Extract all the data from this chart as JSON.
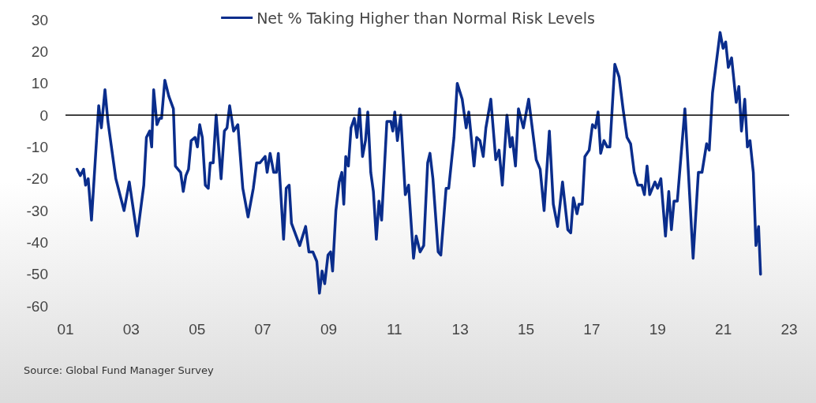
{
  "chart_data": {
    "type": "line",
    "legend": "top",
    "line_style": "solid",
    "grid": false,
    "xlim": [
      2001,
      2023
    ],
    "xticks": [
      {
        "value": 2001,
        "label": "01"
      },
      {
        "value": 2003,
        "label": "03"
      },
      {
        "value": 2005,
        "label": "05"
      },
      {
        "value": 2007,
        "label": "07"
      },
      {
        "value": 2009,
        "label": "09"
      },
      {
        "value": 2011,
        "label": "11"
      },
      {
        "value": 2013,
        "label": "13"
      },
      {
        "value": 2015,
        "label": "15"
      },
      {
        "value": 2017,
        "label": "17"
      },
      {
        "value": 2019,
        "label": "19"
      },
      {
        "value": 2021,
        "label": "21"
      },
      {
        "value": 2023,
        "label": "23"
      }
    ],
    "ylim": [
      -60,
      30
    ],
    "yticks": [
      -60,
      -50,
      -40,
      -30,
      -20,
      -10,
      0,
      10,
      20,
      30
    ],
    "ref_lines": [
      {
        "axis": "y",
        "value": 0,
        "color": "#000000",
        "line_style": "solid"
      }
    ],
    "annotations": [
      "Source: Global Fund Manager Survey"
    ],
    "series": [
      {
        "name": "Net % Taking Higher than Normal Risk Levels",
        "color": "#0a2d8c",
        "x": [
          2001.35,
          2001.45,
          2001.55,
          2001.61,
          2001.69,
          2001.79,
          2002.01,
          2002.09,
          2002.2,
          2002.29,
          2002.53,
          2002.78,
          2002.94,
          2003.18,
          2003.38,
          2003.46,
          2003.56,
          2003.62,
          2003.68,
          2003.78,
          2003.86,
          2003.92,
          2004.02,
          2004.14,
          2004.28,
          2004.34,
          2004.5,
          2004.58,
          2004.66,
          2004.74,
          2004.82,
          2004.94,
          2005.01,
          2005.08,
          2005.16,
          2005.25,
          2005.34,
          2005.4,
          2005.49,
          2005.58,
          2005.73,
          2005.83,
          2005.91,
          2005.99,
          2006.11,
          2006.24,
          2006.39,
          2006.55,
          2006.71,
          2006.81,
          2006.91,
          2007.07,
          2007.13,
          2007.22,
          2007.33,
          2007.41,
          2007.47,
          2007.63,
          2007.71,
          2007.8,
          2007.87,
          2008.12,
          2008.3,
          2008.4,
          2008.52,
          2008.64,
          2008.72,
          2008.8,
          2008.88,
          2008.98,
          2009.06,
          2009.12,
          2009.22,
          2009.32,
          2009.4,
          2009.46,
          2009.52,
          2009.6,
          2009.68,
          2009.78,
          2009.86,
          2009.94,
          2010.03,
          2010.12,
          2010.19,
          2010.28,
          2010.36,
          2010.45,
          2010.53,
          2010.61,
          2010.77,
          2010.89,
          2010.95,
          2011.01,
          2011.09,
          2011.19,
          2011.33,
          2011.43,
          2011.58,
          2011.66,
          2011.78,
          2011.89,
          2012.01,
          2012.08,
          2012.17,
          2012.33,
          2012.41,
          2012.57,
          2012.65,
          2012.81,
          2012.91,
          2013.06,
          2013.18,
          2013.26,
          2013.42,
          2013.5,
          2013.6,
          2013.7,
          2013.78,
          2013.93,
          2014.08,
          2014.18,
          2014.28,
          2014.42,
          2014.52,
          2014.58,
          2014.68,
          2014.77,
          2014.92,
          2015.08,
          2015.31,
          2015.43,
          2015.55,
          2015.71,
          2015.83,
          2015.96,
          2016.11,
          2016.27,
          2016.36,
          2016.44,
          2016.55,
          2016.61,
          2016.71,
          2016.79,
          2016.92,
          2017.02,
          2017.11,
          2017.19,
          2017.27,
          2017.37,
          2017.47,
          2017.55,
          2017.7,
          2017.83,
          2017.95,
          2018.07,
          2018.18,
          2018.29,
          2018.4,
          2018.52,
          2018.6,
          2018.68,
          2018.76,
          2018.92,
          2019.0,
          2019.1,
          2019.24,
          2019.34,
          2019.42,
          2019.5,
          2019.6,
          2019.83,
          2020.08,
          2020.24,
          2020.35,
          2020.49,
          2020.57,
          2020.67,
          2020.9,
          2020.99,
          2021.07,
          2021.15,
          2021.25,
          2021.39,
          2021.47,
          2021.55,
          2021.65,
          2021.73,
          2021.81,
          2021.91,
          2021.99,
          2022.07,
          2022.13
        ],
        "values": [
          -17,
          -19,
          -17,
          -22,
          -20,
          -33,
          3,
          -4,
          8,
          -2,
          -20,
          -30,
          -21,
          -38,
          -22,
          -7,
          -5,
          -10,
          8,
          -3,
          -1,
          -1,
          11,
          6,
          2,
          -16,
          -18,
          -24,
          -19,
          -17,
          -8,
          -7,
          -10,
          -3,
          -7,
          -22,
          -23,
          -15,
          -15,
          0,
          -20,
          -5,
          -4,
          3,
          -5,
          -3,
          -23,
          -32,
          -23,
          -15,
          -15,
          -13,
          -18,
          -12,
          -18,
          -18,
          -12,
          -39,
          -23,
          -22,
          -34,
          -41,
          -35,
          -43,
          -43,
          -46,
          -56,
          -49,
          -53,
          -44,
          -43,
          -49,
          -30,
          -21,
          -18,
          -28,
          -13,
          -16,
          -4,
          -1,
          -7,
          2,
          -13,
          -8,
          1,
          -18,
          -24,
          -39,
          -27,
          -33,
          -2,
          -2,
          -5,
          1,
          -8,
          0,
          -25,
          -22,
          -45,
          -38,
          -43,
          -41,
          -15,
          -12,
          -20,
          -43,
          -44,
          -23,
          -23,
          -7,
          10,
          5,
          -4,
          1,
          -16,
          -7,
          -8,
          -13,
          -4,
          5,
          -14,
          -11,
          -22,
          0,
          -10,
          -7,
          -16,
          2,
          -4,
          5,
          -14,
          -17,
          -30,
          -5,
          -28,
          -35,
          -21,
          -36,
          -37,
          -26,
          -31,
          -28,
          -28,
          -13,
          -11,
          -3,
          -4,
          1,
          -12,
          -8,
          -10,
          -10,
          16,
          12,
          2,
          -7,
          -9,
          -18,
          -22,
          -22,
          -25,
          -16,
          -25,
          -21,
          -23,
          -20,
          -38,
          -24,
          -36,
          -27,
          -27,
          2,
          -45,
          -18,
          -18,
          -9,
          -11,
          7,
          26,
          21,
          23,
          15,
          18,
          4,
          9,
          -5,
          5,
          -10,
          -8,
          -18,
          -41,
          -35,
          -50
        ]
      }
    ]
  }
}
